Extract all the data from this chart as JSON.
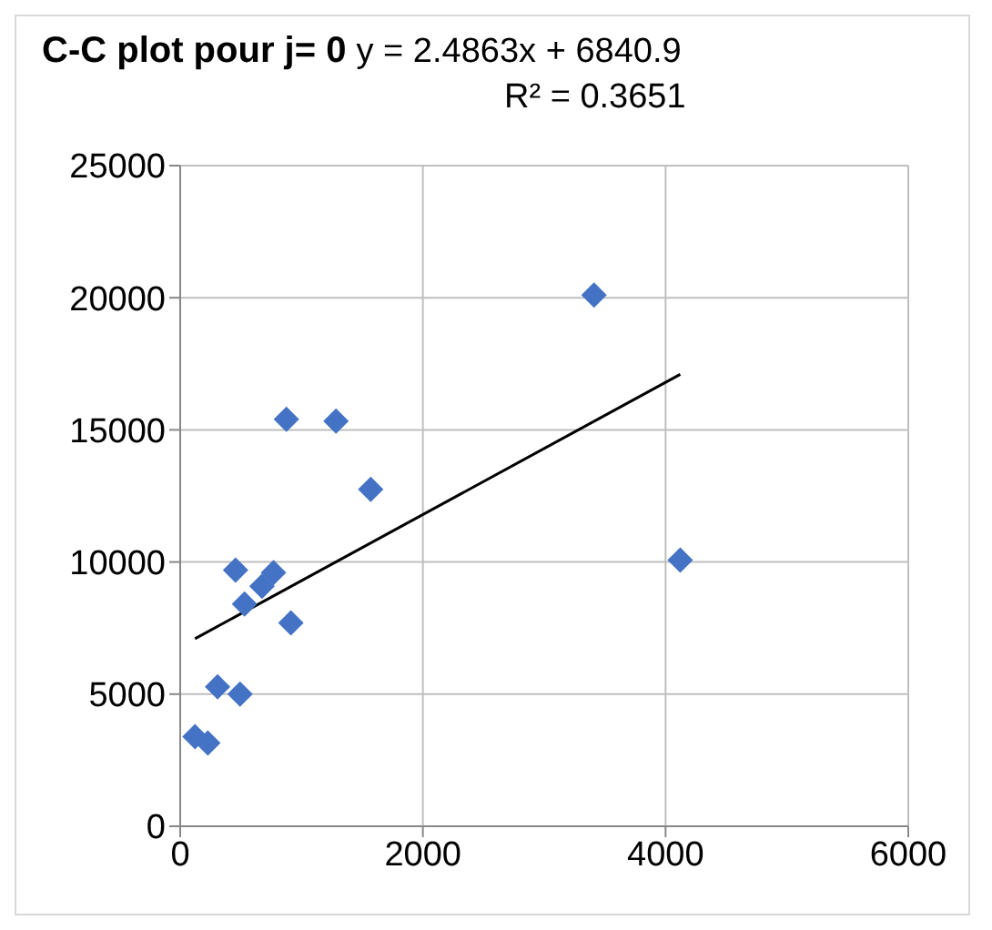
{
  "chart_data": {
    "type": "scatter",
    "title": "C-C plot pour j= 0",
    "annotations": [
      "y = 2.4863x + 6840.9",
      "R² = 0.3651"
    ],
    "series": [
      {
        "color": "#4472c4",
        "marker": "diamond",
        "x": [
          875,
          1284,
          1570,
          456,
          769,
          674,
          530,
          912,
          308,
          493,
          122,
          228,
          3410,
          4121
        ],
        "values": [
          15400,
          15330,
          12750,
          9690,
          9600,
          9080,
          8410,
          7700,
          5280,
          5000,
          3390,
          3150,
          20100,
          10070
        ]
      },
      {
        "type": "line",
        "color": "#000000",
        "x": [
          122,
          4121
        ],
        "values": [
          7100,
          17100
        ]
      }
    ],
    "xlim": [
      0,
      6000
    ],
    "xticks": [
      0,
      2000,
      4000,
      6000
    ],
    "ylim": [
      0,
      25000
    ],
    "yticks": [
      0,
      5000,
      10000,
      15000,
      20000,
      25000
    ],
    "grid": true
  }
}
